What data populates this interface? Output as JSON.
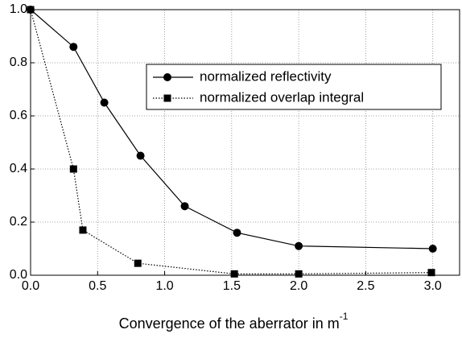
{
  "chart_data": {
    "type": "line",
    "x_label": "Convergence of the aberrator in m",
    "x_label_superscript": "-1",
    "xlim": [
      0,
      3.2
    ],
    "ylim": [
      0,
      1.0
    ],
    "xticks": [
      {
        "value": 0,
        "label": "0.0"
      },
      {
        "value": 0.5,
        "label": "0.5"
      },
      {
        "value": 1.0,
        "label": "1.0"
      },
      {
        "value": 1.5,
        "label": "1.5"
      },
      {
        "value": 2.0,
        "label": "2.0"
      },
      {
        "value": 2.5,
        "label": "2.5"
      },
      {
        "value": 3.0,
        "label": "3.0"
      }
    ],
    "yticks": [
      {
        "value": 0,
        "label": "0.0"
      },
      {
        "value": 0.2,
        "label": "0.2"
      },
      {
        "value": 0.4,
        "label": "0.4"
      },
      {
        "value": 0.6,
        "label": "0.6"
      },
      {
        "value": 0.8,
        "label": "0.8"
      },
      {
        "value": 1.0,
        "label": "1.0"
      }
    ],
    "grid": true,
    "series": [
      {
        "name": "normalized reflectivity",
        "color": "#000000",
        "marker": "circle",
        "linestyle": "solid",
        "x": [
          0,
          0.32,
          0.55,
          0.82,
          1.15,
          1.54,
          2.0,
          3.0
        ],
        "values": [
          1.0,
          0.86,
          0.65,
          0.45,
          0.26,
          0.16,
          0.11,
          0.1
        ]
      },
      {
        "name": "normalized overlap integral",
        "color": "#000000",
        "marker": "square",
        "linestyle": "dotted",
        "x": [
          0,
          0.32,
          0.39,
          0.8,
          1.52,
          2.0,
          2.99
        ],
        "values": [
          1.0,
          0.4,
          0.17,
          0.045,
          0.005,
          0.005,
          0.01
        ]
      }
    ]
  }
}
